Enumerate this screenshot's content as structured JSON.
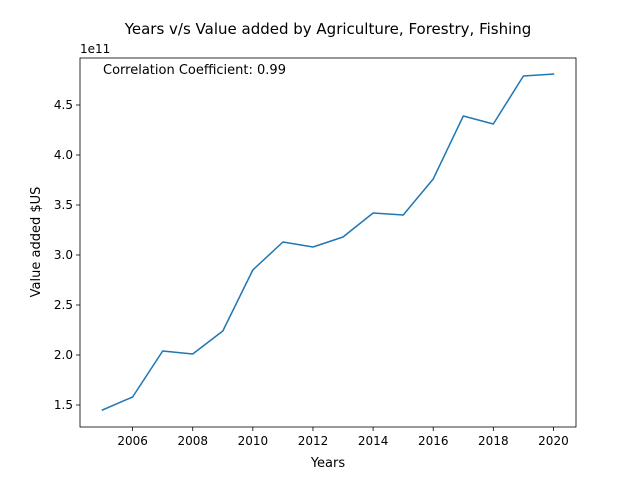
{
  "chart_data": {
    "type": "line",
    "title": "Years v/s Value added by Agriculture, Forestry, Fishing",
    "xlabel": "Years",
    "ylabel": "Value added $US",
    "y_offset_label": "1e11",
    "annotation": "Correlation Coefficient: 0.99",
    "xlim": [
      2004.25,
      2020.75
    ],
    "ylim": [
      1.28,
      4.97
    ],
    "x_ticks": [
      2006,
      2008,
      2010,
      2012,
      2014,
      2016,
      2018,
      2020
    ],
    "x_tick_labels": [
      "2006",
      "2008",
      "2010",
      "2012",
      "2014",
      "2016",
      "2018",
      "2020"
    ],
    "y_ticks": [
      1.5,
      2.0,
      2.5,
      3.0,
      3.5,
      4.0,
      4.5
    ],
    "y_tick_labels": [
      "1.5",
      "2.0",
      "2.5",
      "3.0",
      "3.5",
      "4.0",
      "4.5"
    ],
    "grid": false,
    "series": [
      {
        "x": [
          2005,
          2006,
          2007,
          2008,
          2009,
          2010,
          2011,
          2012,
          2013,
          2014,
          2015,
          2016,
          2017,
          2018,
          2019,
          2020
        ],
        "values": [
          1.45,
          1.58,
          2.04,
          2.01,
          2.24,
          2.85,
          3.13,
          3.08,
          3.18,
          3.42,
          3.4,
          3.76,
          4.39,
          4.31,
          4.79,
          4.81
        ],
        "color": "#1f77b4"
      }
    ],
    "annotation_color": "#ff0000"
  }
}
